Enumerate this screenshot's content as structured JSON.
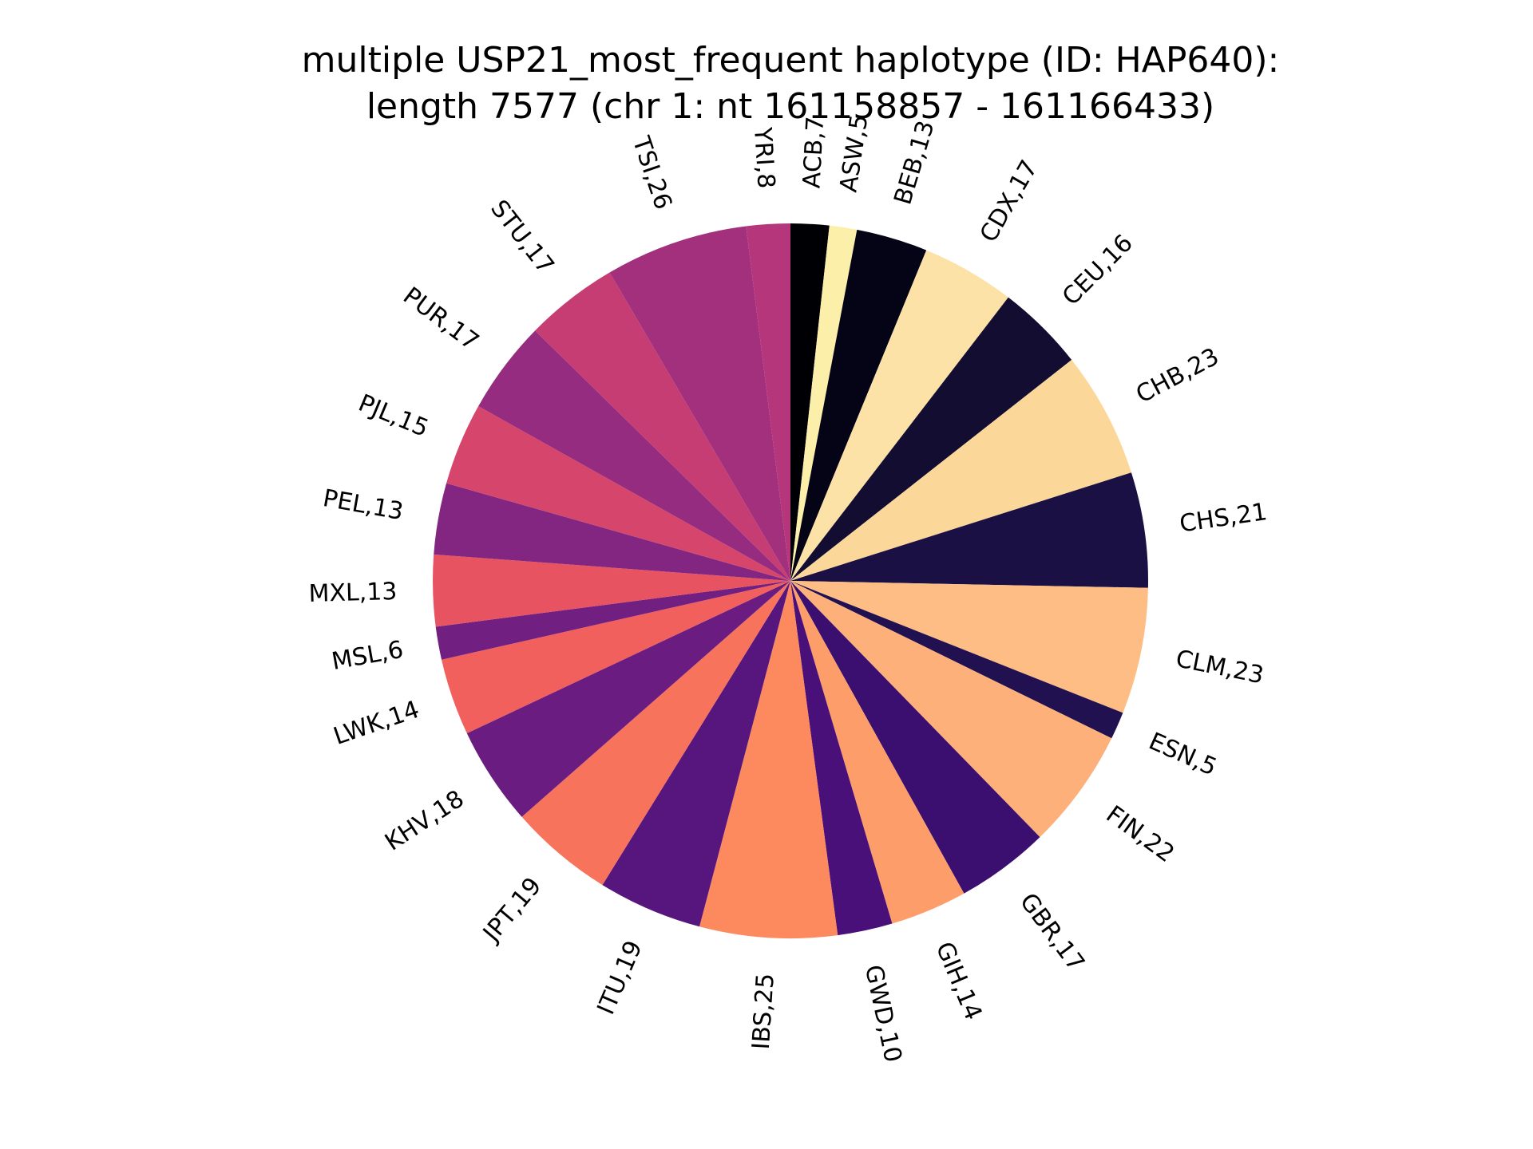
{
  "chart_data": {
    "type": "pie",
    "title": "multiple USP21_most_frequent haplotype (ID: HAP640):",
    "subtitle": "length 7577 (chr 1: nt 161158857 - 161166433)",
    "start": "top",
    "direction": "clockwise",
    "slices": [
      {
        "label": "ACB,7",
        "category": "ACB",
        "value": 7,
        "color": "#000004"
      },
      {
        "label": "ASW,5",
        "category": "ASW",
        "value": 5,
        "color": "#fcefaa"
      },
      {
        "label": "BEB,13",
        "category": "BEB",
        "value": 13,
        "color": "#050417"
      },
      {
        "label": "CDX,17",
        "category": "CDX",
        "value": 17,
        "color": "#fce2a6"
      },
      {
        "label": "CEU,16",
        "category": "CEU",
        "value": 16,
        "color": "#120d31"
      },
      {
        "label": "CHB,23",
        "category": "CHB",
        "value": 23,
        "color": "#fcd79a"
      },
      {
        "label": "CHS,21",
        "category": "CHS",
        "value": 21,
        "color": "#1b1044"
      },
      {
        "label": "CLM,23",
        "category": "CLM",
        "value": 23,
        "color": "#fdbd84"
      },
      {
        "label": "ESN,5",
        "category": "ESN",
        "value": 5,
        "color": "#221150"
      },
      {
        "label": "FIN,22",
        "category": "FIN",
        "value": 22,
        "color": "#fdb07a"
      },
      {
        "label": "GBR,17",
        "category": "GBR",
        "value": 17,
        "color": "#3b0f70"
      },
      {
        "label": "GIH,14",
        "category": "GIH",
        "value": 14,
        "color": "#fd9e6a"
      },
      {
        "label": "GWD,10",
        "category": "GWD",
        "value": 10,
        "color": "#4a1079"
      },
      {
        "label": "IBS,25",
        "category": "IBS",
        "value": 25,
        "color": "#fc8a5e"
      },
      {
        "label": "ITU,19",
        "category": "ITU",
        "value": 19,
        "color": "#57157e"
      },
      {
        "label": "JPT,19",
        "category": "JPT",
        "value": 19,
        "color": "#f7735c"
      },
      {
        "label": "KHV,18",
        "category": "KHV",
        "value": 18,
        "color": "#6a1c81"
      },
      {
        "label": "LWK,14",
        "category": "LWK",
        "value": 14,
        "color": "#f1605d"
      },
      {
        "label": "MSL,6",
        "category": "MSL",
        "value": 6,
        "color": "#711f81"
      },
      {
        "label": "MXL,13",
        "category": "MXL",
        "value": 13,
        "color": "#e85362"
      },
      {
        "label": "PEL,13",
        "category": "PEL",
        "value": 13,
        "color": "#822681"
      },
      {
        "label": "PJL,15",
        "category": "PJL",
        "value": 15,
        "color": "#d6456c"
      },
      {
        "label": "PUR,17",
        "category": "PUR",
        "value": 17,
        "color": "#952c80"
      },
      {
        "label": "STU,17",
        "category": "STU",
        "value": 17,
        "color": "#c63d74"
      },
      {
        "label": "TSI,26",
        "category": "TSI",
        "value": 26,
        "color": "#a3307d"
      },
      {
        "label": "YRI,8",
        "category": "YRI",
        "value": 8,
        "color": "#b5367a"
      }
    ]
  }
}
